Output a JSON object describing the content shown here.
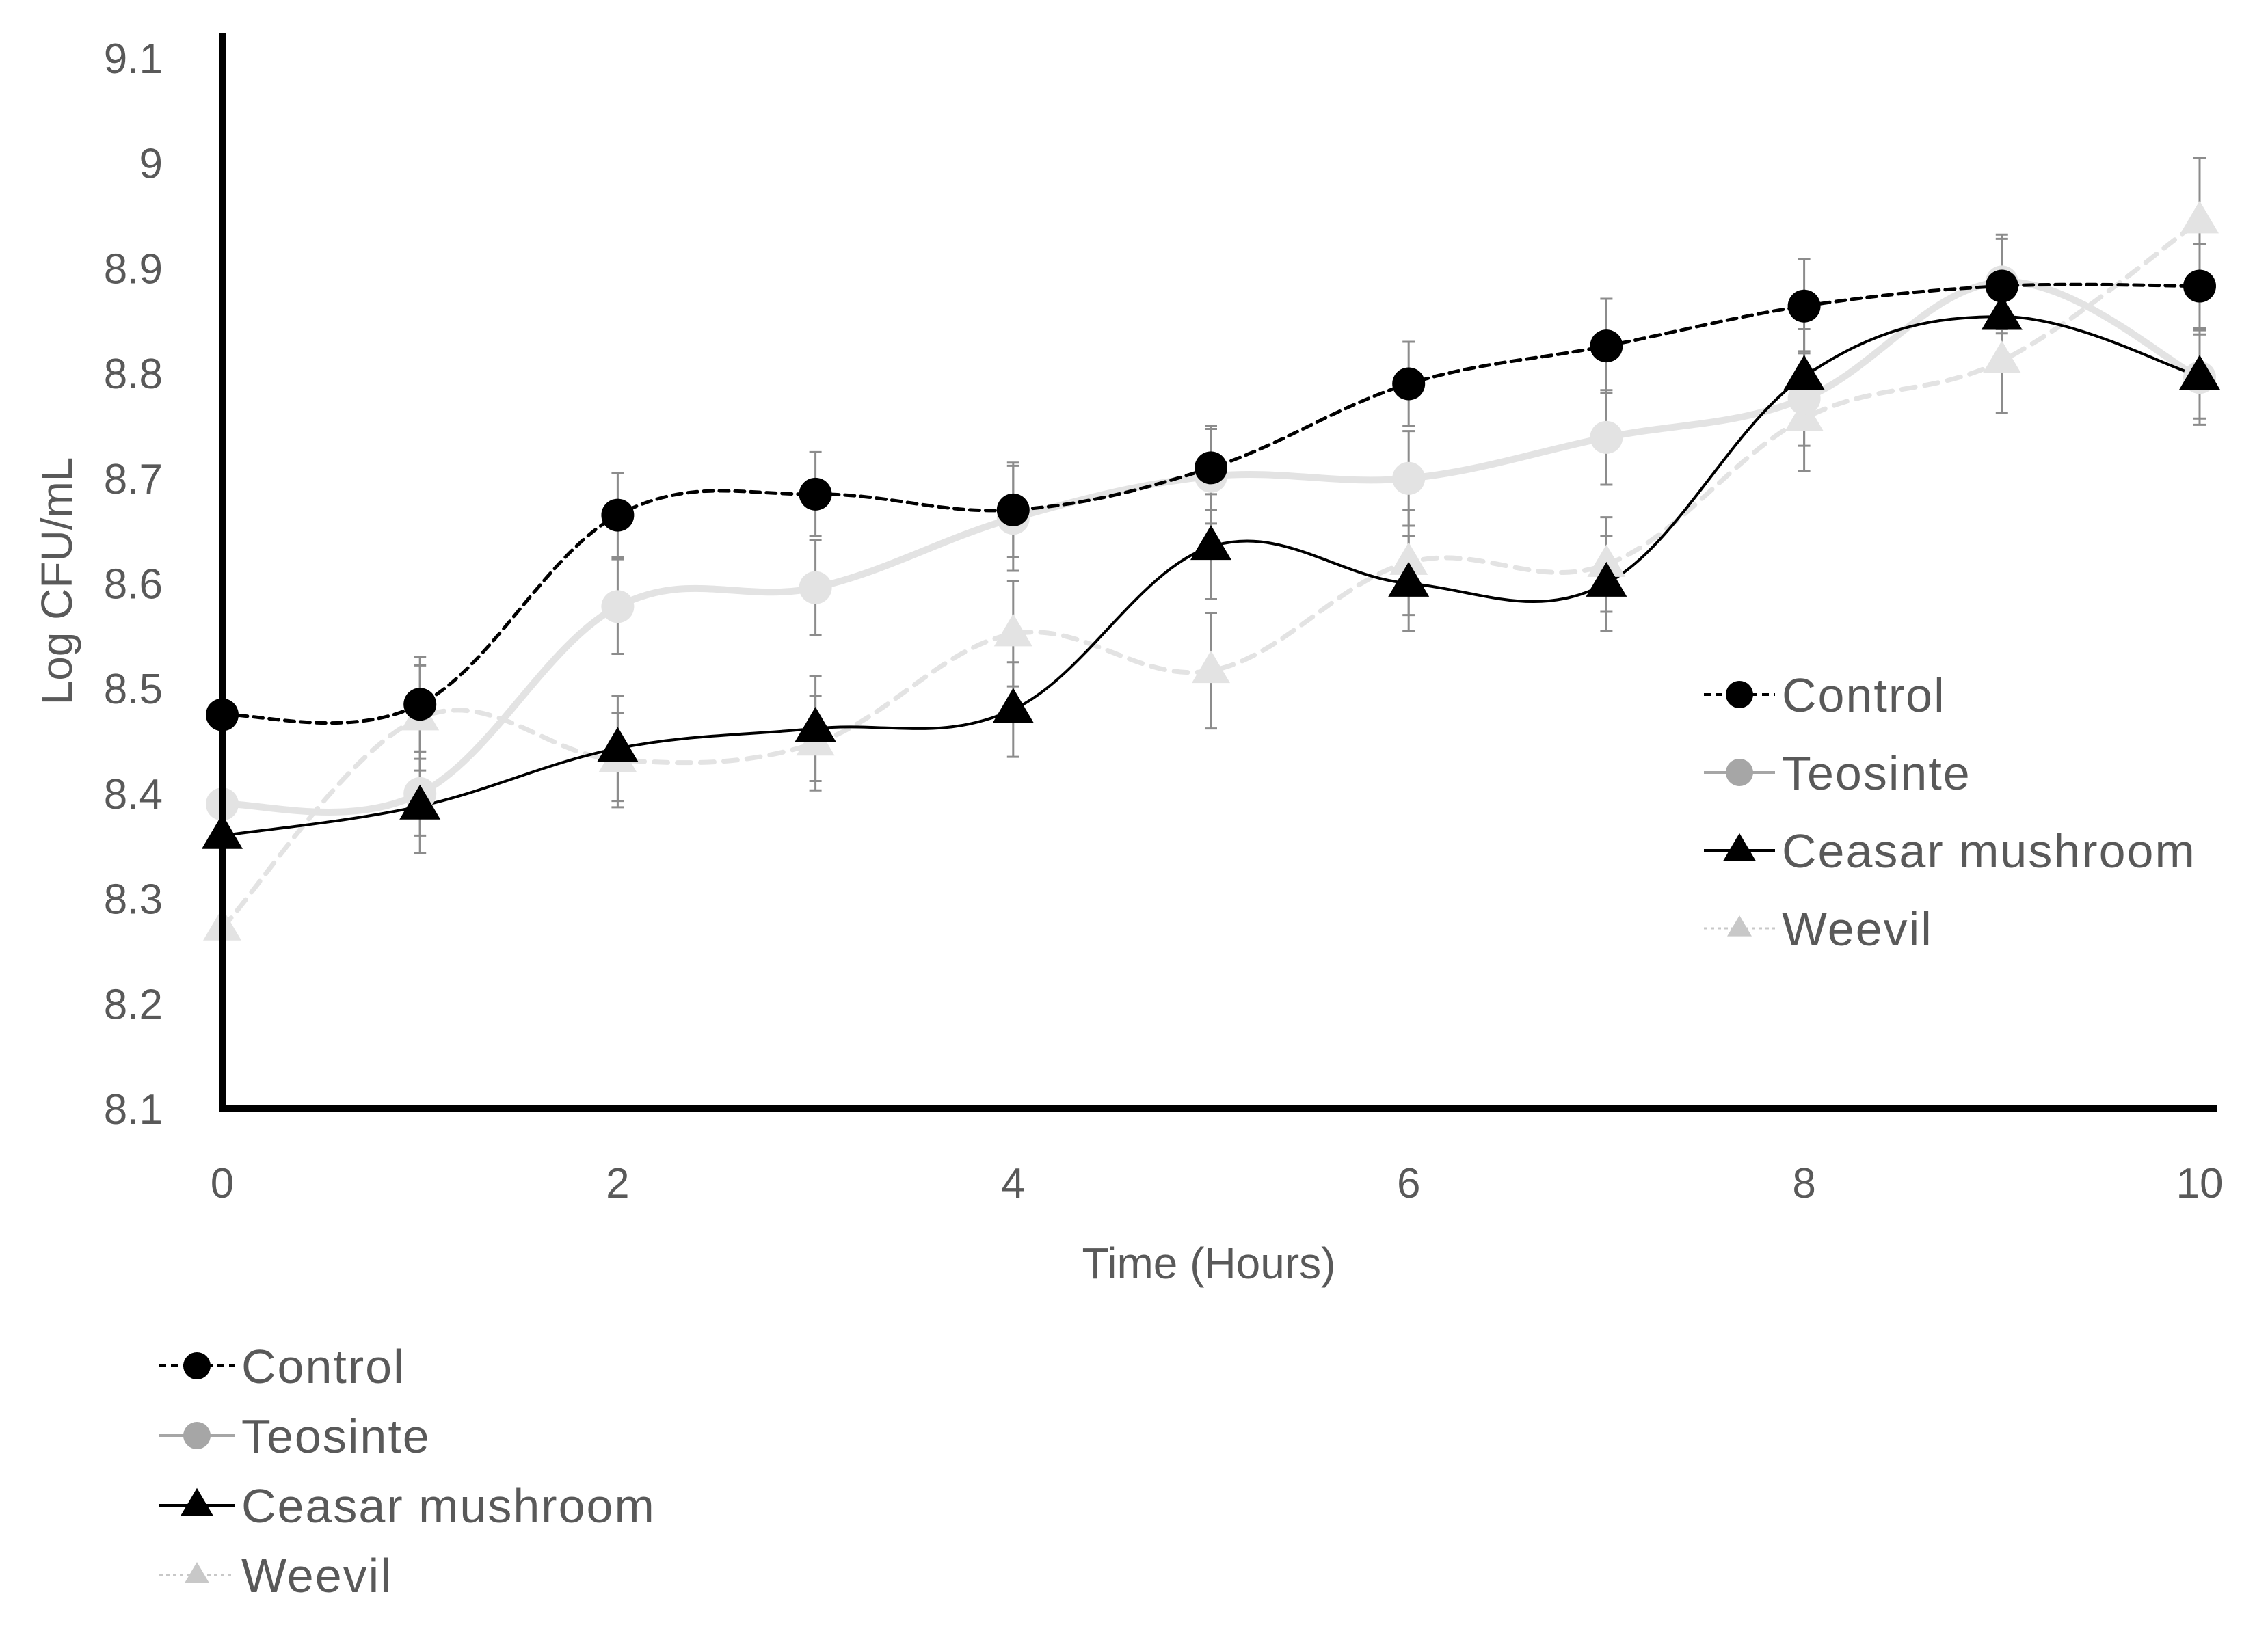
{
  "chart_data": {
    "type": "line",
    "title": "",
    "xlabel": "Time (Hours)",
    "ylabel": "Log CFU/mL",
    "xlim": [
      0,
      10
    ],
    "ylim": [
      8.1,
      9.1
    ],
    "x_ticks": [
      "0",
      "2",
      "4",
      "6",
      "8",
      "10"
    ],
    "y_ticks": [
      "8.1",
      "8.2",
      "8.3",
      "8.4",
      "8.5",
      "8.6",
      "8.7",
      "8.8",
      "8.9",
      "9",
      "9.1"
    ],
    "x": [
      0,
      1,
      2,
      3,
      4,
      5,
      6,
      7,
      8,
      9,
      10
    ],
    "series": [
      {
        "name": "Control",
        "color": "#000000",
        "line": "dashed",
        "marker": "circle",
        "values": [
          8.475,
          8.485,
          8.665,
          8.685,
          8.67,
          8.71,
          8.79,
          8.826,
          8.864,
          8.883,
          8.883
        ],
        "errors": [
          0,
          0.045,
          0.04,
          0.04,
          0.045,
          0.04,
          0.04,
          0.045,
          0.045,
          0.045,
          0.04
        ]
      },
      {
        "name": "Teosinte",
        "color": "#a6a6a6",
        "line_color": "#e3e3e3",
        "line": "solid",
        "marker": "circle",
        "values": [
          8.39,
          8.4,
          8.578,
          8.596,
          8.662,
          8.702,
          8.7,
          8.739,
          8.776,
          8.887,
          8.796
        ],
        "errors": [
          0,
          0.04,
          0.045,
          0.045,
          0.05,
          0.045,
          0.045,
          0.045,
          0.045,
          0.045,
          0.045
        ]
      },
      {
        "name": "Ceasar mushroom",
        "color": "#000000",
        "line": "solid",
        "marker": "triangle",
        "values": [
          8.36,
          8.388,
          8.443,
          8.462,
          8.48,
          8.635,
          8.6,
          8.6,
          8.797,
          8.854,
          8.797
        ],
        "errors": [
          0,
          0.045,
          0.05,
          0.05,
          0.045,
          0.05,
          0.045,
          0.045,
          0.045,
          0.045,
          0.04
        ]
      },
      {
        "name": "Weevil",
        "color": "#c8c8c8",
        "line_color": "#e3e3e3",
        "line": "dashed",
        "marker": "triangle",
        "values": [
          8.272,
          8.472,
          8.432,
          8.448,
          8.552,
          8.517,
          8.62,
          8.618,
          8.757,
          8.812,
          8.945
        ],
        "errors": [
          0,
          0.05,
          0.045,
          0.045,
          0.05,
          0.055,
          0.05,
          0.045,
          0.05,
          0.05,
          0.06
        ]
      }
    ],
    "legend_inner": [
      "Control",
      "Teosinte",
      "Ceasar mushroom",
      "Weevil"
    ],
    "legend_outer": [
      "Control",
      "Teosinte",
      "Ceasar mushroom",
      "Weevil"
    ]
  }
}
